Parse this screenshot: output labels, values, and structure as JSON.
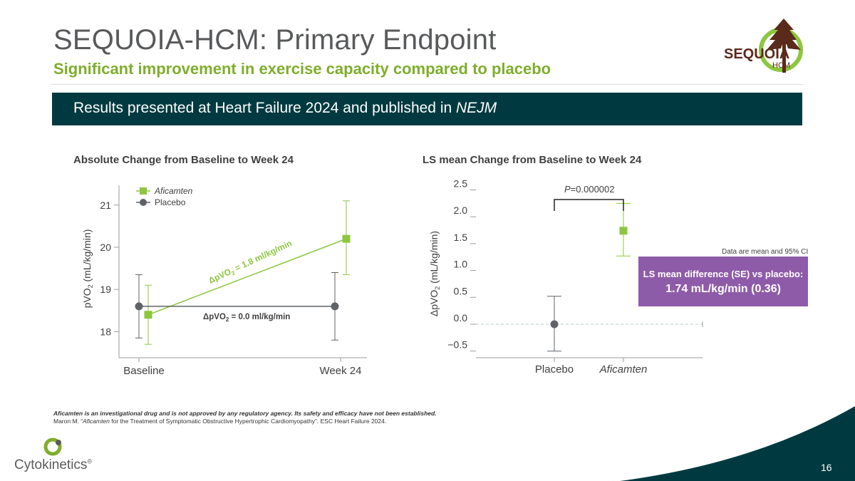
{
  "header": {
    "title": "SEQUOIA-HCM: Primary Endpoint",
    "subtitle": "Significant improvement in exercise capacity compared to placebo",
    "banner_text": "Results presented at Heart Failure 2024 and published in ",
    "banner_em": "NEJM"
  },
  "logo": {
    "name": "SEQUOIA",
    "sub": "HCM"
  },
  "colors": {
    "aficamten": "#8dc63f",
    "placebo": "#5f6368",
    "banner": "#003a40",
    "callout": "#8e5ba8",
    "accent": "#7fae2b"
  },
  "chart_data": [
    {
      "type": "line",
      "title": "Absolute Change from Baseline to Week 24",
      "ylabel_main": "pVO",
      "ylabel_sub": "2",
      "ylabel_tail": " (mL/kg/min)",
      "categories": [
        "Baseline",
        "Week 24"
      ],
      "ylim": [
        17.5,
        21.3
      ],
      "yticks": [
        18,
        19,
        20,
        21
      ],
      "legend": [
        "Aficamten",
        "Placebo"
      ],
      "series": [
        {
          "name": "Aficamten",
          "values": [
            18.4,
            20.2
          ],
          "lower": [
            17.7,
            19.35
          ],
          "upper": [
            19.1,
            21.1
          ]
        },
        {
          "name": "Placebo",
          "values": [
            18.6,
            18.6
          ],
          "lower": [
            17.85,
            17.8
          ],
          "upper": [
            19.35,
            19.4
          ]
        }
      ],
      "annotations": {
        "afi_pre": "ΔpVO",
        "afi_sub": "2",
        "afi_post": " = 1.8 ml/kg/min",
        "pla_pre": "ΔpVO",
        "pla_sub": "2",
        "pla_post": " = 0.0 ml/kg/min"
      }
    },
    {
      "type": "scatter",
      "title": "LS mean Change from Baseline to Week 24",
      "ylabel_main": "ΔpVO",
      "ylabel_sub": "2",
      "ylabel_tail": " (mL/kg/min)",
      "categories": [
        "Placebo",
        "Aficamten"
      ],
      "ylim": [
        -0.6,
        2.6
      ],
      "yticks": [
        "2.5",
        "2.0",
        "1.5",
        "1.0",
        "0.5",
        "0.0",
        "−0.5"
      ],
      "ytick_values": [
        2.5,
        2.0,
        1.5,
        1.0,
        0.5,
        0.0,
        -0.5
      ],
      "points": [
        {
          "name": "Placebo",
          "value": 0.0,
          "lower": -0.5,
          "upper": 0.52
        },
        {
          "name": "Aficamten",
          "value": 1.74,
          "lower": 1.27,
          "upper": 2.25
        }
      ],
      "p_label_pre": "P",
      "p_label_post": "=0.000002",
      "note": "Data are mean and 95% CI",
      "callout_line1": "LS mean difference (SE) vs placebo:",
      "callout_line2": "1.74 mL/kg/min (0.36)"
    }
  ],
  "footnote": {
    "line1": "Aficamten is an investigational drug and is not approved by any regulatory agency. Its safety and efficacy have not been established.",
    "line2_pre": "Maron M. “",
    "line2_em": "Aficamten",
    "line2_post": " for the Treatment of Symptomatic Obstructive Hypertrophic Cardiomyopathy”. ESC Heart Failure 2024."
  },
  "brand": {
    "name": "Cytokinetics",
    "mark": "®"
  },
  "page_number": "16"
}
